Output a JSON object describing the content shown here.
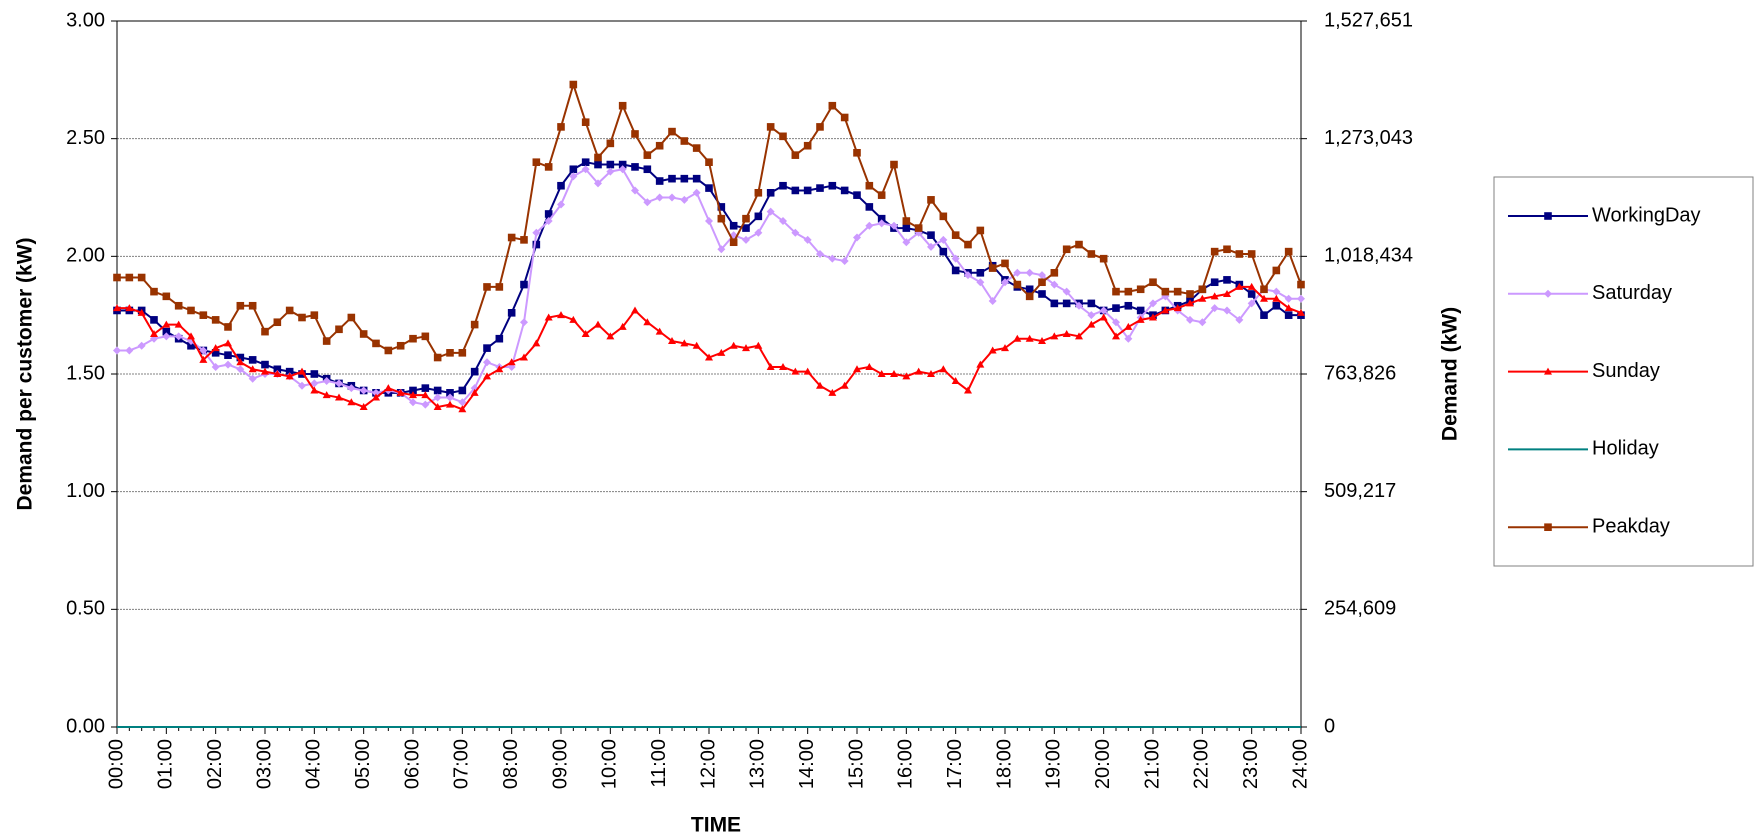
{
  "chart_data": {
    "type": "line",
    "x_label": "TIME",
    "y_label": "Demand per customer (kW)",
    "y2_label": "Demand (kW)",
    "categories": [
      "00:00",
      null,
      null,
      null,
      "01:00",
      null,
      null,
      null,
      "02:00",
      null,
      null,
      null,
      "03:00",
      null,
      null,
      null,
      "04:00",
      null,
      null,
      null,
      "05:00",
      null,
      null,
      null,
      "06:00",
      null,
      null,
      null,
      "07:00",
      null,
      null,
      null,
      "08:00",
      null,
      null,
      null,
      "09:00",
      null,
      null,
      null,
      "10:00",
      null,
      null,
      null,
      "11:00",
      null,
      null,
      null,
      "12:00",
      null,
      null,
      null,
      "13:00",
      null,
      null,
      null,
      "14:00",
      null,
      null,
      null,
      "15:00",
      null,
      null,
      null,
      "16:00",
      null,
      null,
      null,
      "17:00",
      null,
      null,
      null,
      "18:00",
      null,
      null,
      null,
      "19:00",
      null,
      null,
      null,
      "20:00",
      null,
      null,
      null,
      "21:00",
      null,
      null,
      null,
      "22:00",
      null,
      null,
      null,
      "23:00",
      null,
      null,
      null,
      "24:00"
    ],
    "ylim": [
      0,
      3
    ],
    "yticks": [
      {
        "value": 0,
        "label": "0.00"
      },
      {
        "value": 0.5,
        "label": "0.50"
      },
      {
        "value": 1,
        "label": "1.00"
      },
      {
        "value": 1.5,
        "label": "1.50"
      },
      {
        "value": 2,
        "label": "2.00"
      },
      {
        "value": 2.5,
        "label": "2.50"
      },
      {
        "value": 3,
        "label": "3.00"
      }
    ],
    "y2lim": [
      0,
      1527651
    ],
    "y2ticks": [
      0,
      {
        "value": 254609,
        "label": "254,609"
      },
      {
        "value": 509217,
        "label": "509,217"
      },
      {
        "value": 763826,
        "label": "763,826"
      },
      {
        "value": 1018434,
        "label": "1,018,434"
      },
      {
        "value": 1273043,
        "label": "1,273,043"
      },
      {
        "value": 1527651,
        "label": "1,527,651"
      }
    ],
    "grid": true,
    "legend": "right",
    "series": [
      {
        "name": "WorkingDay",
        "color": "#000080",
        "marker": "square",
        "values": [
          1.77,
          1.77,
          1.77,
          1.73,
          1.68,
          1.65,
          1.62,
          1.6,
          1.59,
          1.58,
          1.57,
          1.56,
          1.54,
          1.52,
          1.51,
          1.5,
          1.5,
          1.48,
          1.46,
          1.45,
          1.43,
          1.42,
          1.42,
          1.42,
          1.43,
          1.44,
          1.43,
          1.42,
          1.43,
          1.51,
          1.61,
          1.65,
          1.76,
          1.88,
          2.05,
          2.18,
          2.3,
          2.37,
          2.4,
          2.39,
          2.39,
          2.39,
          2.38,
          2.37,
          2.32,
          2.33,
          2.33,
          2.33,
          2.29,
          2.21,
          2.13,
          2.12,
          2.17,
          2.27,
          2.3,
          2.28,
          2.28,
          2.29,
          2.3,
          2.28,
          2.26,
          2.21,
          2.16,
          2.12,
          2.12,
          2.11,
          2.09,
          2.02,
          1.94,
          1.93,
          1.93,
          1.96,
          1.9,
          1.87,
          1.86,
          1.84,
          1.8,
          1.8,
          1.8,
          1.8,
          1.77,
          1.78,
          1.79,
          1.77,
          1.75,
          1.77,
          1.79,
          1.81,
          1.86,
          1.89,
          1.9,
          1.88,
          1.84,
          1.75,
          1.79,
          1.75,
          1.75
        ]
      },
      {
        "name": "Saturday",
        "color": "#cc99ff",
        "marker": "diamond",
        "values": [
          1.6,
          1.6,
          1.62,
          1.65,
          1.66,
          1.66,
          1.64,
          1.6,
          1.53,
          1.54,
          1.52,
          1.48,
          1.5,
          1.5,
          1.49,
          1.45,
          1.46,
          1.47,
          1.46,
          1.44,
          1.43,
          1.42,
          1.43,
          1.42,
          1.38,
          1.37,
          1.4,
          1.4,
          1.38,
          1.44,
          1.55,
          1.53,
          1.53,
          1.72,
          2.1,
          2.15,
          2.22,
          2.34,
          2.37,
          2.31,
          2.36,
          2.37,
          2.28,
          2.23,
          2.25,
          2.25,
          2.24,
          2.27,
          2.15,
          2.03,
          2.09,
          2.07,
          2.1,
          2.19,
          2.15,
          2.1,
          2.07,
          2.01,
          1.99,
          1.98,
          2.08,
          2.13,
          2.14,
          2.13,
          2.06,
          2.1,
          2.04,
          2.07,
          1.99,
          1.92,
          1.89,
          1.81,
          1.89,
          1.93,
          1.93,
          1.92,
          1.88,
          1.85,
          1.79,
          1.75,
          1.77,
          1.72,
          1.65,
          1.74,
          1.8,
          1.83,
          1.77,
          1.73,
          1.72,
          1.78,
          1.77,
          1.73,
          1.8,
          1.86,
          1.85,
          1.82,
          1.82
        ]
      },
      {
        "name": "Sunday",
        "color": "#ff0000",
        "marker": "triangle",
        "values": [
          1.78,
          1.78,
          1.76,
          1.67,
          1.71,
          1.71,
          1.66,
          1.56,
          1.61,
          1.63,
          1.55,
          1.52,
          1.51,
          1.5,
          1.49,
          1.51,
          1.43,
          1.41,
          1.4,
          1.38,
          1.36,
          1.4,
          1.44,
          1.42,
          1.41,
          1.41,
          1.36,
          1.37,
          1.35,
          1.42,
          1.49,
          1.52,
          1.55,
          1.57,
          1.63,
          1.74,
          1.75,
          1.73,
          1.67,
          1.71,
          1.66,
          1.7,
          1.77,
          1.72,
          1.68,
          1.64,
          1.63,
          1.62,
          1.57,
          1.59,
          1.62,
          1.61,
          1.62,
          1.53,
          1.53,
          1.51,
          1.51,
          1.45,
          1.42,
          1.45,
          1.52,
          1.53,
          1.5,
          1.5,
          1.49,
          1.51,
          1.5,
          1.52,
          1.47,
          1.43,
          1.54,
          1.6,
          1.61,
          1.65,
          1.65,
          1.64,
          1.66,
          1.67,
          1.66,
          1.71,
          1.74,
          1.66,
          1.7,
          1.73,
          1.74,
          1.77,
          1.78,
          1.8,
          1.82,
          1.83,
          1.84,
          1.87,
          1.87,
          1.82,
          1.82,
          1.78,
          1.76
        ]
      },
      {
        "name": "Holiday",
        "color": "#008080",
        "marker": "none",
        "values": [
          0,
          0,
          0,
          0,
          0,
          0,
          0,
          0,
          0,
          0,
          0,
          0,
          0,
          0,
          0,
          0,
          0,
          0,
          0,
          0,
          0,
          0,
          0,
          0,
          0,
          0,
          0,
          0,
          0,
          0,
          0,
          0,
          0,
          0,
          0,
          0,
          0,
          0,
          0,
          0,
          0,
          0,
          0,
          0,
          0,
          0,
          0,
          0,
          0,
          0,
          0,
          0,
          0,
          0,
          0,
          0,
          0,
          0,
          0,
          0,
          0,
          0,
          0,
          0,
          0,
          0,
          0,
          0,
          0,
          0,
          0,
          0,
          0,
          0,
          0,
          0,
          0,
          0,
          0,
          0,
          0,
          0,
          0,
          0,
          0,
          0,
          0,
          0,
          0,
          0,
          0,
          0,
          0,
          0,
          0,
          0,
          0
        ]
      },
      {
        "name": "Peakday",
        "color": "#993300",
        "marker": "square",
        "values": [
          1.91,
          1.91,
          1.91,
          1.85,
          1.83,
          1.79,
          1.77,
          1.75,
          1.73,
          1.7,
          1.79,
          1.79,
          1.68,
          1.72,
          1.77,
          1.74,
          1.75,
          1.64,
          1.69,
          1.74,
          1.67,
          1.63,
          1.6,
          1.62,
          1.65,
          1.66,
          1.57,
          1.59,
          1.59,
          1.71,
          1.87,
          1.87,
          2.08,
          2.07,
          2.4,
          2.38,
          2.55,
          2.73,
          2.57,
          2.42,
          2.48,
          2.64,
          2.52,
          2.43,
          2.47,
          2.53,
          2.49,
          2.46,
          2.4,
          2.16,
          2.06,
          2.16,
          2.27,
          2.55,
          2.51,
          2.43,
          2.47,
          2.55,
          2.64,
          2.59,
          2.44,
          2.3,
          2.26,
          2.39,
          2.15,
          2.12,
          2.24,
          2.17,
          2.09,
          2.05,
          2.11,
          1.95,
          1.97,
          1.88,
          1.83,
          1.89,
          1.93,
          2.03,
          2.05,
          2.01,
          1.99,
          1.85,
          1.85,
          1.86,
          1.89,
          1.85,
          1.85,
          1.84,
          1.86,
          2.02,
          2.03,
          2.01,
          2.01,
          1.86,
          1.94,
          2.02,
          1.88
        ]
      }
    ]
  }
}
